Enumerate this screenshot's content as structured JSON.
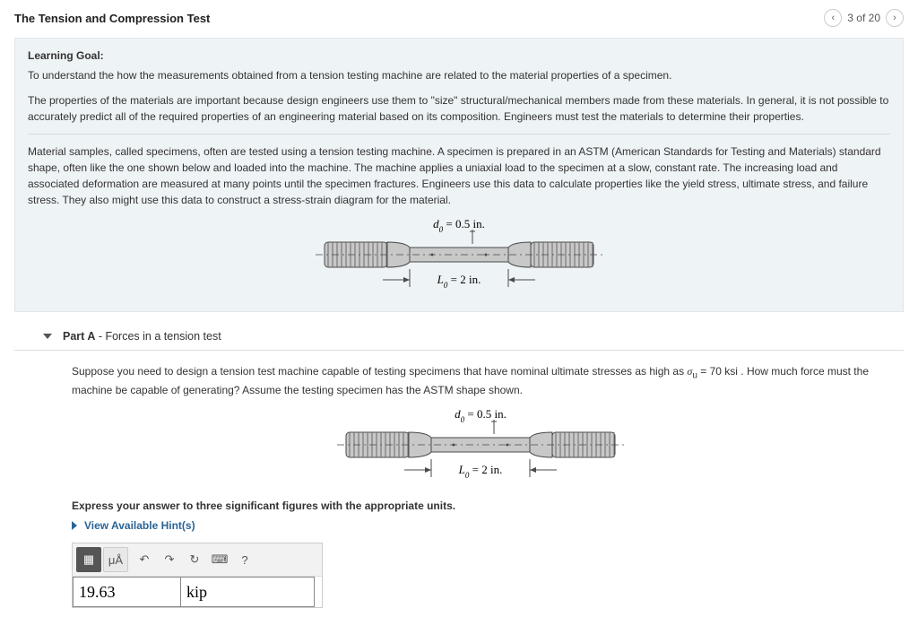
{
  "header": {
    "title": "The Tension and Compression Test",
    "pager_text": "3 of 20"
  },
  "intro": {
    "learning_goal_label": "Learning Goal:",
    "goal_text": "To understand the how the measurements obtained from a tension testing machine are related to the material properties of a specimen.",
    "para1": "The properties of the materials are important because design engineers use them to \"size\" structural/mechanical members made from these materials. In general, it is not possible to accurately predict all of the required properties of an engineering material based on its composition. Engineers must test the materials to determine their properties.",
    "para2": "Material samples, called specimens, often are tested using a tension testing machine. A specimen is prepared in an ASTM (American Standards for Testing and Materials) standard shape, often like the one shown below and loaded into the machine. The machine applies a uniaxial load to the specimen at a slow, constant rate. The increasing load and associated deformation are measured at many points until the specimen fractures. Engineers use this data to calculate properties like the yield stress, ultimate stress, and failure stress. They also might use this data to construct a stress-strain diagram for the material."
  },
  "diagram": {
    "d0_label": "d",
    "d0_sub": "0",
    "d0_eq": "= 0.5 in.",
    "L0_label": "L",
    "L0_sub": "0",
    "L0_eq": "= 2 in.",
    "colors": {
      "body": "#c8c8c8",
      "stroke": "#4a4a4a",
      "hatch": "#6a6a6a"
    }
  },
  "partA": {
    "label_prefix": "Part A",
    "label_rest": " - Forces in a tension test",
    "prompt_a": "Suppose you need to design a tension test machine capable of testing specimens that have nominal ultimate stresses as high as ",
    "sigma_html": "σ",
    "sigma_sub": "u",
    "sigma_eq": " = 70 ksi",
    "prompt_b": " . How much force must the machine be capable of generating? Assume the testing specimen has the ASTM shape shown.",
    "express": "Express your answer to three significant figures with the appropriate units.",
    "hints_label": "View Available Hint(s)",
    "toolbar": {
      "fmt": "▦",
      "uA": "μÅ",
      "undo": "↶",
      "redo": "↷",
      "reset": "↻",
      "kbd": "⌨",
      "help": "?"
    },
    "value": "19.63",
    "unit": "kip"
  }
}
